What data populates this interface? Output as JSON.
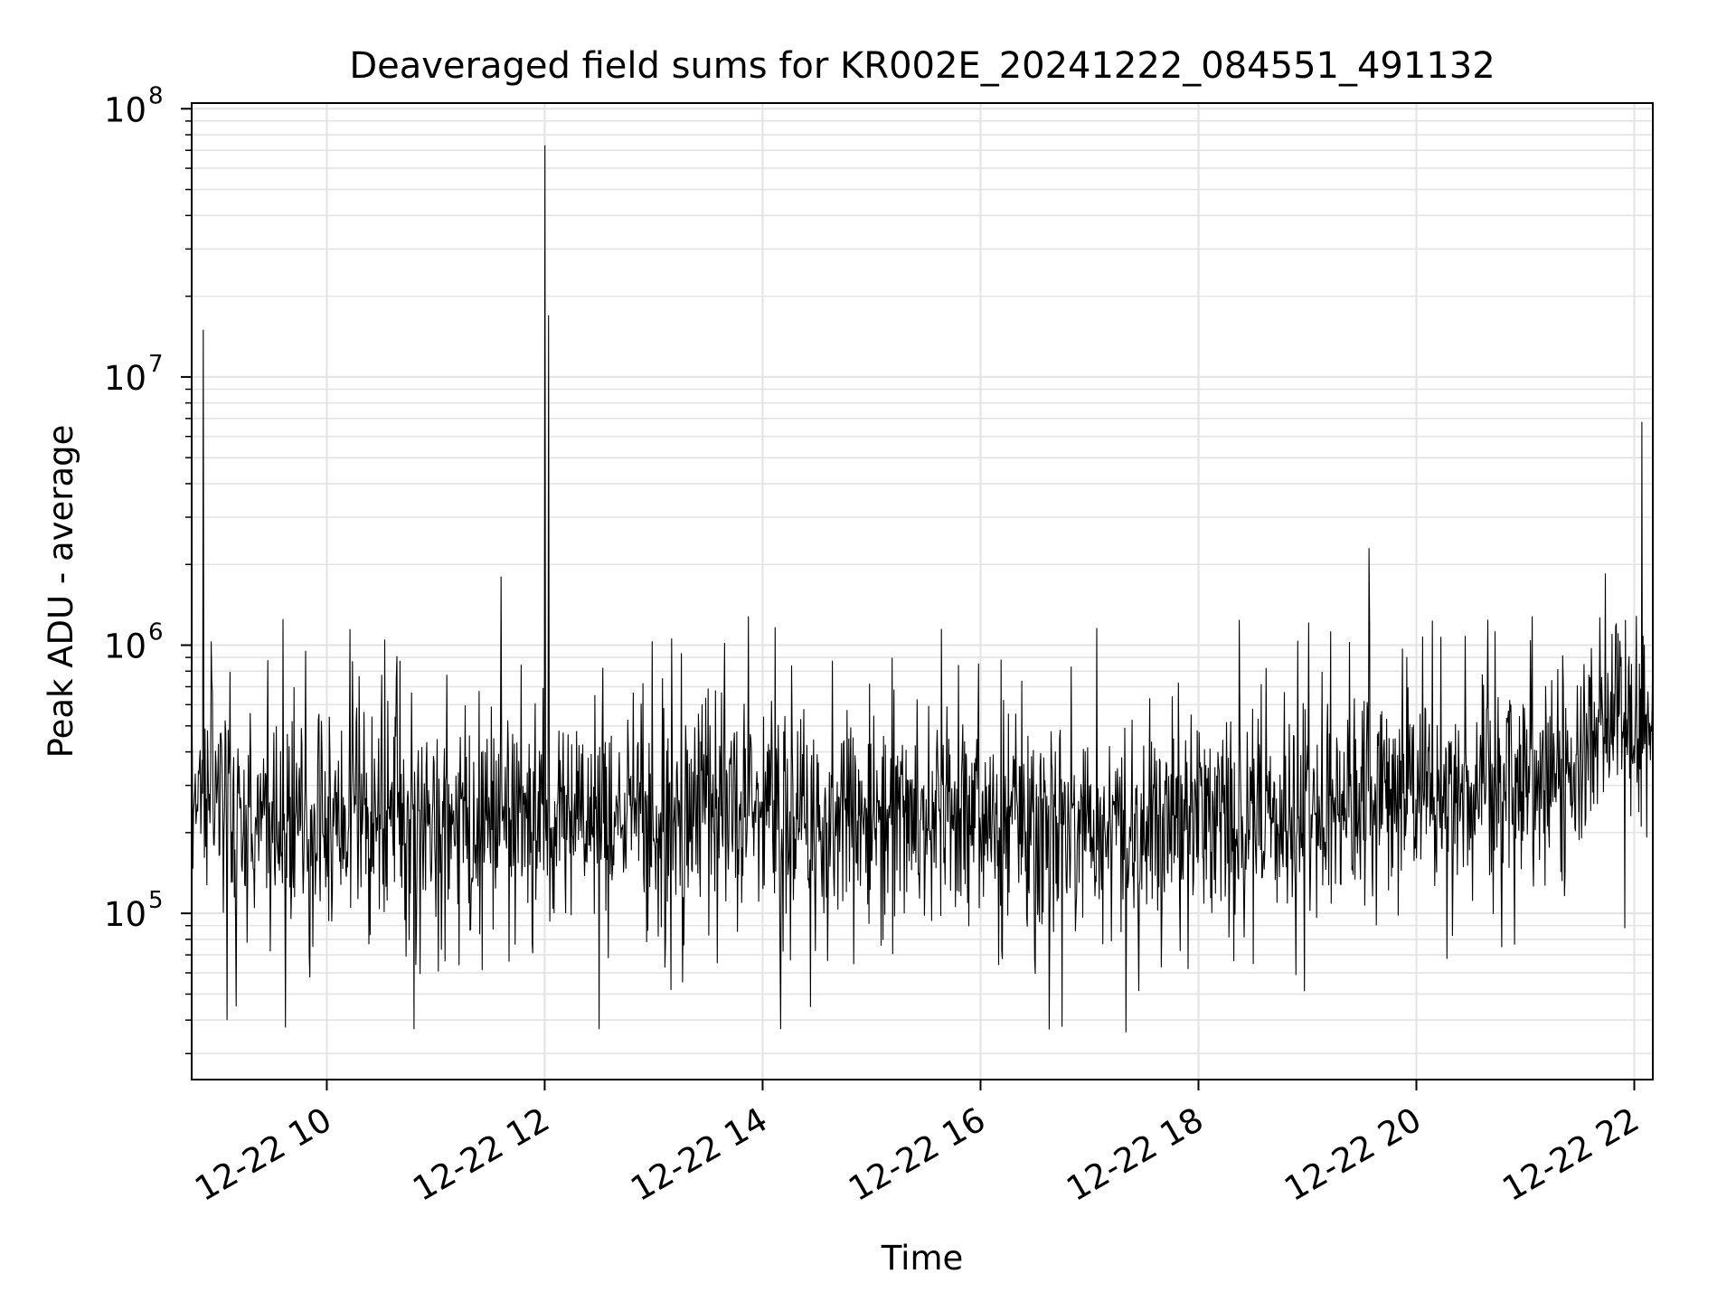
{
  "chart_data": {
    "type": "line",
    "title": "Deaveraged field sums for KR002E_20241222_084551_491132",
    "xlabel": "Time",
    "ylabel": "Peak ADU - average",
    "x_tick_labels": [
      "12-22 10",
      "12-22 12",
      "12-22 14",
      "12-22 16",
      "12-22 18",
      "12-22 20",
      "12-22 22"
    ],
    "x_tick_hours": [
      10,
      12,
      14,
      16,
      18,
      20,
      22
    ],
    "y_scale": "log",
    "y_tick_labels": [
      {
        "base": "10",
        "exp": "5"
      },
      {
        "base": "10",
        "exp": "6"
      },
      {
        "base": "10",
        "exp": "7"
      },
      {
        "base": "10",
        "exp": "8"
      }
    ],
    "y_tick_values": [
      100000,
      1000000,
      10000000,
      100000000
    ],
    "xlim_hours": [
      8.76,
      22.17
    ],
    "ylim": [
      24000,
      105000000
    ],
    "grid": true,
    "line_color": "#000000",
    "series_note_points": [
      {
        "t": "08:46",
        "v": 400000
      },
      {
        "t": "08:52",
        "v": 15000000
      },
      {
        "t": "09:10",
        "v": 45000
      },
      {
        "t": "09:36",
        "v": 1250000
      },
      {
        "t": "10:32",
        "v": 1050000
      },
      {
        "t": "10:48",
        "v": 37000
      },
      {
        "t": "11:36",
        "v": 1800000
      },
      {
        "t": "12:00",
        "v": 73000000
      },
      {
        "t": "12:02",
        "v": 17000000
      },
      {
        "t": "12:30",
        "v": 37000
      },
      {
        "t": "14:10",
        "v": 37000
      },
      {
        "t": "17:20",
        "v": 36000
      },
      {
        "t": "19:34",
        "v": 2300000
      },
      {
        "t": "21:44",
        "v": 1850000
      },
      {
        "t": "22:04",
        "v": 6800000
      },
      {
        "t": "22:10",
        "v": 600000
      }
    ]
  }
}
